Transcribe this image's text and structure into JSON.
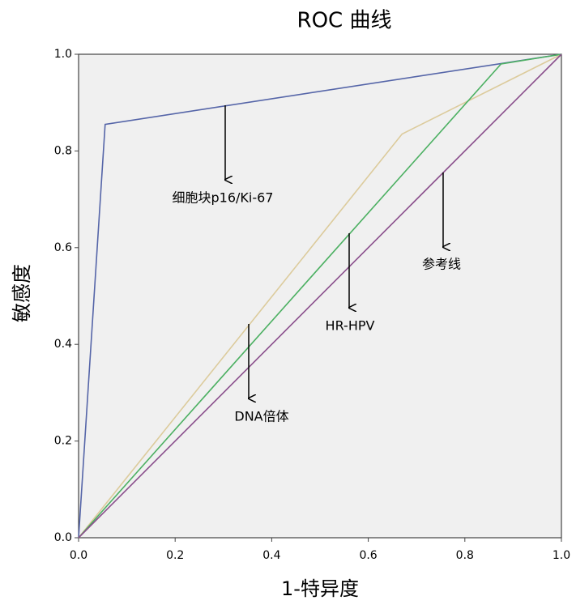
{
  "chart_data": {
    "type": "line",
    "title": "ROC 曲线",
    "x_label": "1-特异度",
    "y_label": "敏感度",
    "xlim": [
      0,
      1
    ],
    "ylim": [
      0,
      1
    ],
    "xticks": [
      {
        "value": 0,
        "label": "0.0"
      },
      0.2,
      0.4,
      0.6,
      0.8,
      {
        "value": 1,
        "label": "1.0"
      }
    ],
    "yticks": [
      {
        "value": 0,
        "label": "0.0"
      },
      0.2,
      0.4,
      0.6,
      0.8,
      {
        "value": 1,
        "label": "1.0"
      }
    ],
    "series": [
      {
        "name": "细胞块p16/Ki-67",
        "color": "#5565a8",
        "x": [
          0,
          0.055,
          1
        ],
        "values": [
          0,
          0.855,
          1
        ]
      },
      {
        "name": "DNA倍体",
        "color": "#dccb9c",
        "x": [
          0,
          0.67,
          1
        ],
        "values": [
          0,
          0.835,
          1
        ]
      },
      {
        "name": "HR-HPV",
        "color": "#4cb062",
        "x": [
          0,
          0.875,
          1
        ],
        "values": [
          0,
          0.98,
          1
        ]
      },
      {
        "name": "参考线",
        "color": "#8a4f8c",
        "x": [
          0,
          1
        ],
        "values": [
          0,
          1
        ]
      }
    ]
  }
}
